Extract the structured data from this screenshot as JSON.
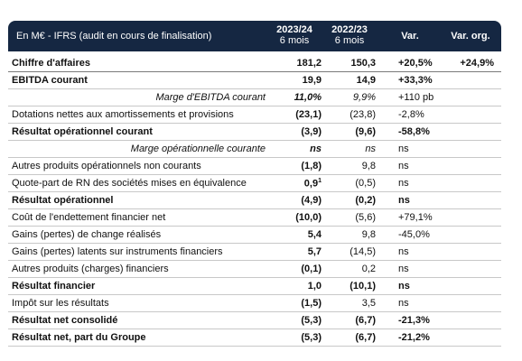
{
  "header": {
    "label": "En M€ - IFRS (audit en cours de finalisation)",
    "col1_year": "2023/24",
    "col1_sub": "6 mois",
    "col2_year": "2022/23",
    "col2_sub": "6 mois",
    "col3": "Var.",
    "col4": "Var. org."
  },
  "rows": [
    {
      "label": "Chiffre d'affaires",
      "v1": "181,2",
      "v2": "150,3",
      "v3": "+20,5%",
      "v4": "+24,9%",
      "bold": true
    },
    {
      "label": "EBITDA courant",
      "v1": "19,9",
      "v2": "14,9",
      "v3": "+33,3%",
      "v4": "",
      "bold": true
    },
    {
      "label": "Marge d'EBITDA courant",
      "v1": "11,0%",
      "v2": "9,9%",
      "v3": "+110 pb",
      "v4": "",
      "italic": true
    },
    {
      "label": "Dotations nettes aux amortissements et provisions",
      "v1": "(23,1)",
      "v2": "(23,8)",
      "v3": "-2,8%",
      "v4": ""
    },
    {
      "label": "Résultat opérationnel courant",
      "v1": "(3,9)",
      "v2": "(9,6)",
      "v3": "-58,8%",
      "v4": "",
      "bold": true
    },
    {
      "label": "Marge opérationnelle courante",
      "v1": "ns",
      "v2": "ns",
      "v3": "ns",
      "v4": "",
      "italic": true
    },
    {
      "label": "Autres produits opérationnels non courants",
      "v1": "(1,8)",
      "v2": "9,8",
      "v3": "ns",
      "v4": ""
    },
    {
      "label": "Quote-part de RN des sociétés mises en équivalence",
      "v1": "0,9",
      "v1_sup": "1",
      "v2": "(0,5)",
      "v3": "ns",
      "v4": ""
    },
    {
      "label": "Résultat opérationnel",
      "v1": "(4,9)",
      "v2": "(0,2)",
      "v3": "ns",
      "v4": "",
      "bold": true
    },
    {
      "label": "Coût de l'endettement financier net",
      "v1": "(10,0)",
      "v2": "(5,6)",
      "v3": "+79,1%",
      "v4": ""
    },
    {
      "label": "Gains (pertes) de change réalisés",
      "v1": "5,4",
      "v2": "9,8",
      "v3": "-45,0%",
      "v4": ""
    },
    {
      "label": "Gains (pertes) latents sur instruments financiers",
      "v1": "5,7",
      "v2": "(14,5)",
      "v3": "ns",
      "v4": ""
    },
    {
      "label": "Autres produits (charges) financiers",
      "v1": "(0,1)",
      "v2": "0,2",
      "v3": "ns",
      "v4": ""
    },
    {
      "label": "Résultat financier",
      "v1": "1,0",
      "v2": "(10,1)",
      "v3": "ns",
      "v4": "",
      "bold": true
    },
    {
      "label": "Impôt sur les résultats",
      "v1": "(1,5)",
      "v2": "3,5",
      "v3": "ns",
      "v4": ""
    },
    {
      "label": "Résultat net consolidé",
      "v1": "(5,3)",
      "v2": "(6,7)",
      "v3": "-21,3%",
      "v4": "",
      "bold": true
    },
    {
      "label": "Résultat net, part du Groupe",
      "v1": "(5,3)",
      "v2": "(6,7)",
      "v3": "-21,2%",
      "v4": "",
      "bold": true
    }
  ]
}
